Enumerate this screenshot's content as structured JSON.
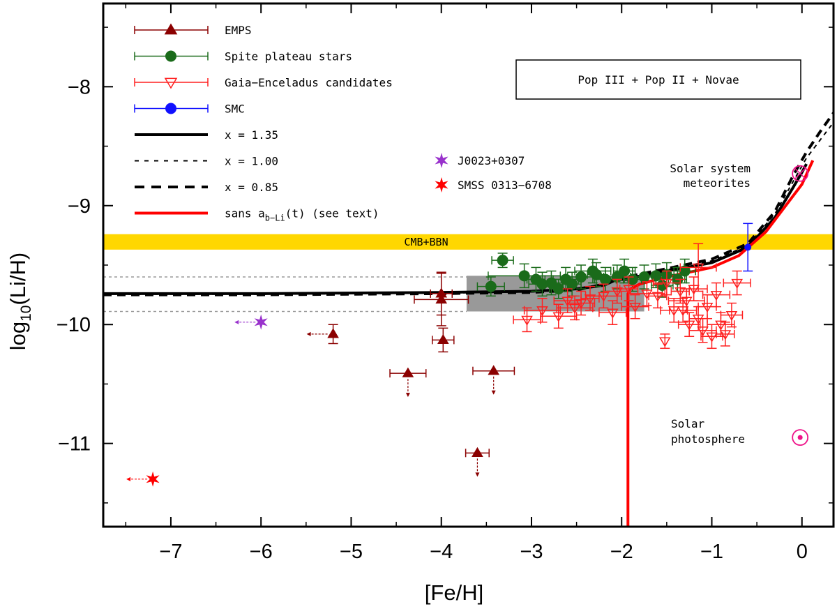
{
  "chart_data": {
    "type": "scatter",
    "title": "",
    "xlabel": "[Fe/H]",
    "ylabel_main": "log",
    "ylabel_sub": "10",
    "ylabel_rest": "(Li/H)",
    "xlim": [
      -7.75,
      0.35
    ],
    "ylim": [
      -11.7,
      -7.3
    ],
    "xticks": [
      -7,
      -6,
      -5,
      -4,
      -3,
      -2,
      -1,
      0
    ],
    "xtick_labels": [
      "−7",
      "−6",
      "−5",
      "−4",
      "−3",
      "−2",
      "−1",
      "0"
    ],
    "yticks": [
      -8,
      -9,
      -10,
      -11
    ],
    "ytick_labels": [
      "−8",
      "−9",
      "−10",
      "−11"
    ],
    "grid": false,
    "legend_position": "top-left",
    "model_box_label": "Pop III + Pop II + Novae",
    "band": {
      "label": "CMB+BBN",
      "y": [
        -9.37,
        -9.24
      ],
      "color": "#ffd700"
    },
    "plateau_box": {
      "x": [
        -3.72,
        -1.75
      ],
      "y": [
        -9.89,
        -9.59
      ],
      "color": "#999999"
    },
    "plateau_dotted_lines": [
      -9.6,
      -9.89
    ],
    "legend": [
      {
        "label": "EMPS",
        "marker": "triangle",
        "color": "#8b0000"
      },
      {
        "label": "Spite plateau stars",
        "marker": "circle",
        "color": "#1a6b1a"
      },
      {
        "label": "Gaia−Enceladus candidates",
        "marker": "open-triangle-down",
        "color": "#ff2020"
      },
      {
        "label": "SMC",
        "marker": "circle",
        "color": "#1010ff"
      },
      {
        "label": "x = 1.35",
        "line": "solid-thick",
        "color": "#000000"
      },
      {
        "label": "x = 1.00",
        "line": "dotted",
        "color": "#000000"
      },
      {
        "label": "x = 0.85",
        "line": "dashed",
        "color": "#000000"
      },
      {
        "label_main": "sans a",
        "label_sub": "b−Li",
        "label_rest": "(t)  (see text)",
        "line": "solid",
        "color": "#ff0000"
      }
    ],
    "star_legend": [
      {
        "label": "J0023+0307",
        "color": "#9932cc"
      },
      {
        "label": "SMSS 0313−6708",
        "color": "#ff0000"
      }
    ],
    "annotations": [
      {
        "text": "Solar system",
        "x": -2.15,
        "y": -8.73
      },
      {
        "text": "meteorites",
        "x": -2.15,
        "y": -8.55
      },
      {
        "text": "Solar",
        "x": -2.15,
        "y": -10.82
      },
      {
        "text": "photosphere",
        "x": -2.15,
        "y": -10.98
      }
    ],
    "series": [
      {
        "name": "EMPS",
        "color": "#8b0000",
        "points": [
          {
            "x": -4.0,
            "y": -9.79,
            "xerr": 0.3,
            "yerr": 0.22
          },
          {
            "x": -4.0,
            "y": -9.74,
            "xerr": 0.12,
            "yerr": 0.18
          },
          {
            "x": -3.98,
            "y": -10.13,
            "xerr": 0.12,
            "yerr": 0.1
          },
          {
            "x": -5.2,
            "y": -10.08,
            "xerr": 0.0,
            "yerr": 0.08,
            "upper_x": true
          },
          {
            "x": -4.37,
            "y": -10.41,
            "xerr": 0.2,
            "yerr": 0.0,
            "upper_y": true
          },
          {
            "x": -3.42,
            "y": -10.39,
            "xerr": 0.23,
            "yerr": 0.0,
            "upper_y": true
          },
          {
            "x": -3.6,
            "y": -11.08,
            "xerr": 0.13,
            "yerr": 0.0,
            "upper_y": true
          }
        ]
      },
      {
        "name": "Spite plateau stars",
        "color": "#1a6b1a",
        "points": [
          {
            "x": -3.32,
            "y": -9.46,
            "xerr": 0.12,
            "yerr": 0.06
          },
          {
            "x": -3.08,
            "y": -9.59,
            "xerr": 0.4,
            "yerr": 0.1
          },
          {
            "x": -2.95,
            "y": -9.62,
            "xerr": 0.1,
            "yerr": 0.1
          },
          {
            "x": -2.88,
            "y": -9.66,
            "xerr": 0.15,
            "yerr": 0.1
          },
          {
            "x": -2.78,
            "y": -9.65,
            "xerr": 0.12,
            "yerr": 0.1
          },
          {
            "x": -2.62,
            "y": -9.62,
            "xerr": 0.14,
            "yerr": 0.1
          },
          {
            "x": -2.55,
            "y": -9.66,
            "xerr": 0.1,
            "yerr": 0.1
          },
          {
            "x": -2.45,
            "y": -9.6,
            "xerr": 0.15,
            "yerr": 0.1
          },
          {
            "x": -2.32,
            "y": -9.55,
            "xerr": 0.2,
            "yerr": 0.1
          },
          {
            "x": -2.28,
            "y": -9.58,
            "xerr": 0.1,
            "yerr": 0.1
          },
          {
            "x": -2.18,
            "y": -9.62,
            "xerr": 0.12,
            "yerr": 0.1
          },
          {
            "x": -2.05,
            "y": -9.6,
            "xerr": 0.15,
            "yerr": 0.1
          },
          {
            "x": -1.97,
            "y": -9.55,
            "xerr": 0.12,
            "yerr": 0.1
          },
          {
            "x": -1.88,
            "y": -9.62,
            "xerr": 0.1,
            "yerr": 0.1
          },
          {
            "x": -1.75,
            "y": -9.6,
            "xerr": 0.15,
            "yerr": 0.1
          },
          {
            "x": -1.62,
            "y": -9.59,
            "xerr": 0.1,
            "yerr": 0.1
          },
          {
            "x": -1.5,
            "y": -9.58,
            "xerr": 0.12,
            "yerr": 0.1
          },
          {
            "x": -1.38,
            "y": -9.62,
            "xerr": 0.1,
            "yerr": 0.1
          },
          {
            "x": -3.45,
            "y": -9.68,
            "xerr": 0.15,
            "yerr": 0.08
          },
          {
            "x": -2.7,
            "y": -9.7,
            "xerr": 0.1,
            "yerr": 0.08
          },
          {
            "x": -1.3,
            "y": -9.55,
            "xerr": 0.12,
            "yerr": 0.1
          },
          {
            "x": -1.55,
            "y": -9.67,
            "xerr": 0.12,
            "yerr": 0.1
          }
        ]
      },
      {
        "name": "Gaia−Enceladus candidates",
        "color": "#ff2020",
        "points": [
          {
            "x": -3.05,
            "y": -9.96,
            "xerr": 0.15,
            "yerr": 0.1
          },
          {
            "x": -2.7,
            "y": -9.93,
            "xerr": 0.2,
            "yerr": 0.1
          },
          {
            "x": -2.52,
            "y": -9.86,
            "xerr": 0.2,
            "yerr": 0.1
          },
          {
            "x": -2.45,
            "y": -9.82,
            "xerr": 0.15,
            "yerr": 0.1
          },
          {
            "x": -2.35,
            "y": -9.78,
            "xerr": 0.1,
            "yerr": 0.1
          },
          {
            "x": -2.2,
            "y": -9.76,
            "xerr": 0.2,
            "yerr": 0.1
          },
          {
            "x": -2.05,
            "y": -9.72,
            "xerr": 0.15,
            "yerr": 0.1
          },
          {
            "x": -1.92,
            "y": -9.7,
            "xerr": 0.1,
            "yerr": 0.1
          },
          {
            "x": -1.85,
            "y": -9.85,
            "xerr": 0.15,
            "yerr": 0.1
          },
          {
            "x": -1.72,
            "y": -9.74,
            "xerr": 0.2,
            "yerr": 0.1
          },
          {
            "x": -1.6,
            "y": -9.76,
            "xerr": 0.1,
            "yerr": 0.1
          },
          {
            "x": -1.5,
            "y": -9.65,
            "xerr": 0.15,
            "yerr": 0.1
          },
          {
            "x": -1.42,
            "y": -9.88,
            "xerr": 0.15,
            "yerr": 0.1
          },
          {
            "x": -1.35,
            "y": -9.72,
            "xerr": 0.1,
            "yerr": 0.1
          },
          {
            "x": -1.28,
            "y": -9.8,
            "xerr": 0.2,
            "yerr": 0.1
          },
          {
            "x": -1.2,
            "y": -9.7,
            "xerr": 0.15,
            "yerr": 0.1
          },
          {
            "x": -1.15,
            "y": -9.95,
            "xerr": 0.1,
            "yerr": 0.1
          },
          {
            "x": -1.1,
            "y": -10.05,
            "xerr": 0.15,
            "yerr": 0.1
          },
          {
            "x": -1.05,
            "y": -9.85,
            "xerr": 0.1,
            "yerr": 0.1
          },
          {
            "x": -1.0,
            "y": -10.1,
            "xerr": 0.12,
            "yerr": 0.1
          },
          {
            "x": -0.95,
            "y": -9.75,
            "xerr": 0.15,
            "yerr": 0.1
          },
          {
            "x": -0.9,
            "y": -10.0,
            "xerr": 0.15,
            "yerr": 0.1
          },
          {
            "x": -0.85,
            "y": -10.08,
            "xerr": 0.1,
            "yerr": 0.1
          },
          {
            "x": -1.25,
            "y": -10.0,
            "xerr": 0.12,
            "yerr": 0.1
          },
          {
            "x": -1.15,
            "y": -9.52,
            "xerr": 0.2,
            "yerr": 0.2
          },
          {
            "x": -1.52,
            "y": -10.14,
            "xerr": 0.0,
            "yerr": 0.06
          },
          {
            "x": -2.88,
            "y": -9.88,
            "xerr": 0.2,
            "yerr": 0.1
          },
          {
            "x": -2.6,
            "y": -9.8,
            "xerr": 0.15,
            "yerr": 0.1
          },
          {
            "x": -2.1,
            "y": -9.9,
            "xerr": 0.15,
            "yerr": 0.1
          },
          {
            "x": -1.32,
            "y": -9.88,
            "xerr": 0.15,
            "yerr": 0.1
          },
          {
            "x": -0.78,
            "y": -9.92,
            "xerr": 0.12,
            "yerr": 0.1
          },
          {
            "x": -0.72,
            "y": -9.65,
            "xerr": 0.15,
            "yerr": 0.1
          }
        ]
      },
      {
        "name": "SMC",
        "color": "#1010ff",
        "points": [
          {
            "x": -0.6,
            "y": -9.35,
            "xerr": 0.0,
            "yerr": 0.2
          }
        ]
      }
    ],
    "stars": [
      {
        "name": "J0023+0307",
        "x": -6.0,
        "y": -9.98,
        "color": "#9932cc",
        "upper_x": true
      },
      {
        "name": "SMSS 0313−6708",
        "x": -7.2,
        "y": -11.3,
        "color": "#ff0000",
        "upper_x": true
      }
    ],
    "solar_system_meteorites": {
      "x": -0.02,
      "y": -8.73,
      "color": "#ee1188"
    },
    "solar_photosphere": {
      "x": -0.02,
      "y": -10.95,
      "color": "#ee1188"
    },
    "model_curves": [
      {
        "name": "x = 1.35",
        "style": "solid-thick",
        "color": "#000000",
        "x": [
          -7.75,
          -6,
          -4,
          -3,
          -2.5,
          -2.2,
          -2.05,
          -1.95,
          -1.5,
          -1.0,
          -0.6,
          -0.3,
          -0.1,
          0.0,
          0.05
        ],
        "y": [
          -9.74,
          -9.74,
          -9.73,
          -9.72,
          -9.7,
          -9.67,
          -9.62,
          -9.62,
          -9.55,
          -9.48,
          -9.35,
          -9.1,
          -8.85,
          -8.72,
          -8.65
        ]
      },
      {
        "name": "x = 0.85",
        "style": "dashed",
        "color": "#000000",
        "x": [
          -7.75,
          -6,
          -4,
          -3,
          -2.5,
          -2.2,
          -2.05,
          -1.95,
          -1.5,
          -1.0,
          -0.6,
          -0.3,
          -0.1,
          0.05,
          0.2,
          0.35
        ],
        "y": [
          -9.75,
          -9.75,
          -9.74,
          -9.73,
          -9.71,
          -9.66,
          -9.58,
          -9.6,
          -9.53,
          -9.45,
          -9.32,
          -9.05,
          -8.75,
          -8.55,
          -8.38,
          -8.22
        ]
      },
      {
        "name": "x = 1.00",
        "style": "dotted",
        "color": "#000000",
        "x": [
          -7.75,
          -6,
          -4,
          -3,
          -2.5,
          -2.2,
          -2.05,
          -1.95,
          -1.5,
          -1.0,
          -0.6,
          -0.3,
          -0.1,
          0.05,
          0.2,
          0.35
        ],
        "y": [
          -9.745,
          -9.745,
          -9.735,
          -9.725,
          -9.705,
          -9.665,
          -9.6,
          -9.61,
          -9.54,
          -9.465,
          -9.335,
          -9.07,
          -8.8,
          -8.6,
          -8.45,
          -8.3
        ]
      },
      {
        "name": "sans a_b-Li(t)",
        "style": "red",
        "color": "#ff0000",
        "x": [
          -1.93,
          -1.93,
          -1.9,
          -1.8,
          -1.5,
          -1.0,
          -0.7,
          -0.4,
          -0.2,
          0.0,
          0.12
        ],
        "y": [
          -11.7,
          -9.74,
          -9.7,
          -9.66,
          -9.6,
          -9.52,
          -9.42,
          -9.22,
          -9.02,
          -8.82,
          -8.62
        ]
      }
    ]
  }
}
